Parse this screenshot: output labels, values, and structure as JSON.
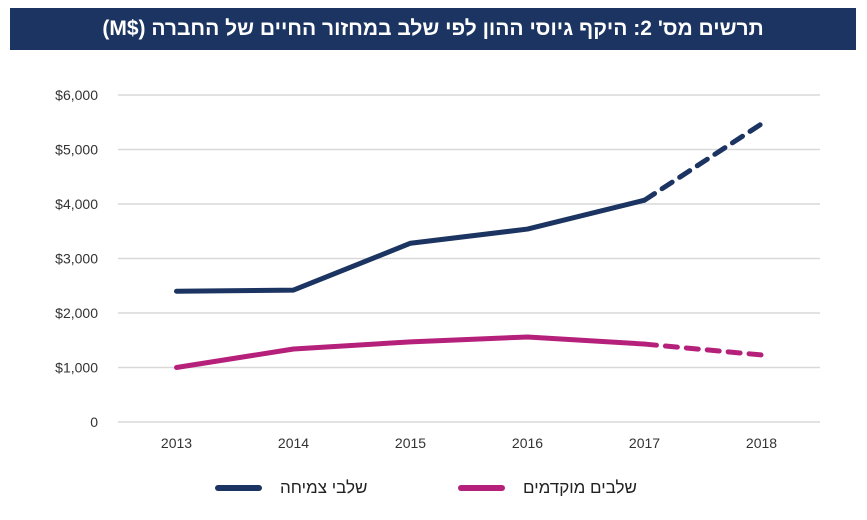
{
  "title": "תרשים מס' 2: היקף גיוסי ההון לפי שלב במחזור החיים של החברה ($M)",
  "chart_data": {
    "type": "line",
    "title": "תרשים מס' 2: היקף גיוסי ההון לפי שלב במחזור החיים של החברה ($M)",
    "categories": [
      "2013",
      "2014",
      "2015",
      "2016",
      "2017",
      "2018"
    ],
    "ylim": [
      0,
      6000
    ],
    "yticks": [
      0,
      1000,
      2000,
      3000,
      4000,
      5000,
      6000
    ],
    "ytick_labels": [
      "0",
      "$1,000",
      "$2,000",
      "$3,000",
      "$4,000",
      "$5,000",
      "$6,000"
    ],
    "grid": true,
    "legend_placement": "bottom",
    "dashed_from_category": "2017",
    "series": [
      {
        "name": "שלבי צמיחה",
        "color": "#1b3461",
        "values": [
          2400,
          2420,
          3280,
          3540,
          4070,
          5470
        ]
      },
      {
        "name": "שלבים מוקדמים",
        "color": "#b5217a",
        "values": [
          1000,
          1340,
          1470,
          1560,
          1430,
          1230
        ]
      }
    ]
  }
}
